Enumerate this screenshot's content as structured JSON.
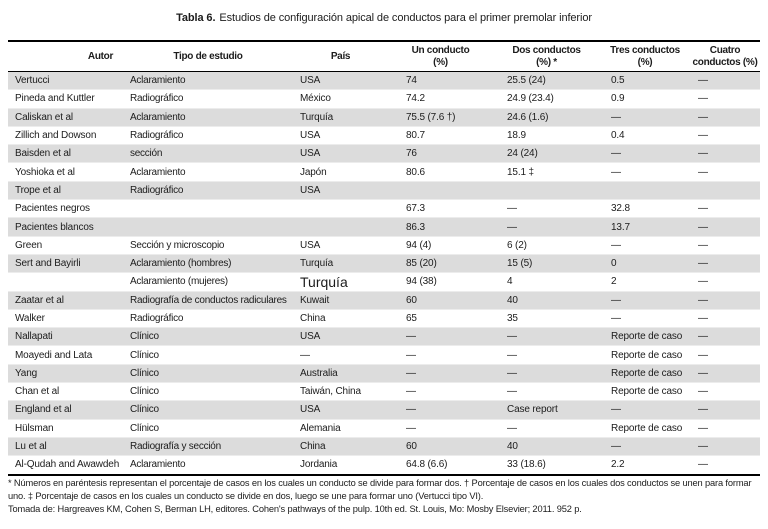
{
  "title": {
    "label": "Tabla 6.",
    "text": "Estudios de configuración apical de conductos para el primer premolar inferior"
  },
  "colors": {
    "row_shade": "#dcdcdc",
    "rule": "#000000"
  },
  "table": {
    "headers": [
      {
        "l1": "Autor",
        "l2": ""
      },
      {
        "l1": "Tipo de estudio",
        "l2": ""
      },
      {
        "l1": "País",
        "l2": ""
      },
      {
        "l1": "Un conducto",
        "l2": "(%)"
      },
      {
        "l1": "Dos conductos",
        "l2": "(%) *"
      },
      {
        "l1": "Tres conductos",
        "l2": "(%)"
      },
      {
        "l1": "Cuatro",
        "l2": "conductos (%)"
      }
    ],
    "rows": [
      {
        "autor": "Vertucci",
        "tipo": "Aclaramiento",
        "pais": "USA",
        "uno": "74",
        "dos": "25.5 (24)",
        "tres": "0.5",
        "cuatro": "—"
      },
      {
        "autor": "Pineda and Kuttler",
        "tipo": "Radiográfico",
        "pais": "México",
        "uno": "74.2",
        "dos": "24.9 (23.4)",
        "tres": "0.9",
        "cuatro": "—"
      },
      {
        "autor": "Caliskan et al",
        "tipo": "Aclaramiento",
        "pais": "Turquía",
        "uno": "75.5 (7.6 †)",
        "dos": "24.6 (1.6)",
        "tres": "—",
        "cuatro": "—"
      },
      {
        "autor": "Zillich and Dowson",
        "tipo": "Radiográfico",
        "pais": "USA",
        "uno": "80.7",
        "dos": "18.9",
        "tres": "0.4",
        "cuatro": "—"
      },
      {
        "autor": "Baisden et al",
        "tipo": "sección",
        "pais": "USA",
        "uno": "76",
        "dos": "24 (24)",
        "tres": "—",
        "cuatro": "—"
      },
      {
        "autor": "Yoshioka et al",
        "tipo": "Aclaramiento",
        "pais": "Japón",
        "uno": "80.6",
        "dos": "15.1 ‡",
        "tres": "—",
        "cuatro": "—"
      },
      {
        "autor": "Trope et al",
        "tipo": "Radiográfico",
        "pais": "USA",
        "uno": "",
        "dos": "",
        "tres": "",
        "cuatro": ""
      },
      {
        "autor": "Pacientes negros",
        "tipo": "",
        "pais": "",
        "uno": "67.3",
        "dos": "—",
        "tres": "32.8",
        "cuatro": "—"
      },
      {
        "autor": "Pacientes blancos",
        "tipo": "",
        "pais": "",
        "uno": "86.3",
        "dos": "—",
        "tres": "13.7",
        "cuatro": "—"
      },
      {
        "autor": "Green",
        "tipo": "Sección y microscopio",
        "pais": "USA",
        "uno": "94 (4)",
        "dos": "6 (2)",
        "tres": "—",
        "cuatro": "—"
      },
      {
        "autor": "Sert and Bayirli",
        "tipo": "Aclaramiento (hombres)",
        "pais": "Turquía",
        "uno": "85 (20)",
        "dos": "15 (5)",
        "tres": "0",
        "cuatro": "—"
      },
      {
        "autor": "",
        "tipo": "Aclaramiento (mujeres)",
        "pais": "Turquía",
        "pais_large": true,
        "uno": "94 (38)",
        "dos": "4",
        "tres": "2",
        "cuatro": "—"
      },
      {
        "autor": "Zaatar et al",
        "tipo": "Radiografía de conductos radiculares",
        "pais": "Kuwait",
        "uno": "60",
        "dos": "40",
        "tres": "—",
        "cuatro": "—"
      },
      {
        "autor": "Walker",
        "tipo": "Radiográfico",
        "pais": "China",
        "uno": "65",
        "dos": "35",
        "tres": "—",
        "cuatro": "—"
      },
      {
        "autor": "Nallapati",
        "tipo": "Clínico",
        "pais": "USA",
        "uno": "—",
        "dos": "—",
        "tres": "Reporte de caso",
        "cuatro": "—"
      },
      {
        "autor": "Moayedi and Lata",
        "tipo": "Clínico",
        "pais": "—",
        "uno": "—",
        "dos": "—",
        "tres": "Reporte de caso",
        "cuatro": "—"
      },
      {
        "autor": "Yang",
        "tipo": "Clínico",
        "pais": "Australia",
        "uno": "—",
        "dos": "—",
        "tres": "Reporte de caso",
        "cuatro": "—"
      },
      {
        "autor": "Chan et al",
        "tipo": "Clínico",
        "pais": "Taiwán, China",
        "uno": "—",
        "dos": "—",
        "tres": "Reporte de caso",
        "cuatro": "—"
      },
      {
        "autor": "England et al",
        "tipo": "Clínico",
        "pais": "USA",
        "uno": "—",
        "dos": "Case report",
        "tres": "—",
        "cuatro": "—"
      },
      {
        "autor": "Hülsman",
        "tipo": "Clínico",
        "pais": "Alemania",
        "uno": "—",
        "dos": "—",
        "tres": "Reporte de caso",
        "cuatro": "—"
      },
      {
        "autor": "Lu et al",
        "tipo": "Radiografía y sección",
        "pais": "China",
        "uno": "60",
        "dos": "40",
        "tres": "—",
        "cuatro": "—"
      },
      {
        "autor": "Al-Qudah and Awawdeh",
        "tipo": "Aclaramiento",
        "pais": "Jordania",
        "uno": "64.8 (6.6)",
        "dos": "33 (18.6)",
        "tres": "2.2",
        "cuatro": "—"
      }
    ]
  },
  "footnotes": {
    "note": "* Números en paréntesis representan el porcentaje de casos en los cuales un conducto se divide para formar dos. † Porcentaje de casos en los cuales dos conductos se unen para formar uno. ‡ Porcentaje de casos en los cuales un conducto se divide en dos, luego se une para formar uno (Vertucci tipo VI).",
    "source": "Tomada de: Hargreaves KM, Cohen S, Berman LH, editores. Cohen's pathways of the pulp. 10th ed. St. Louis, Mo: Mosby Elsevier; 2011. 952 p."
  }
}
